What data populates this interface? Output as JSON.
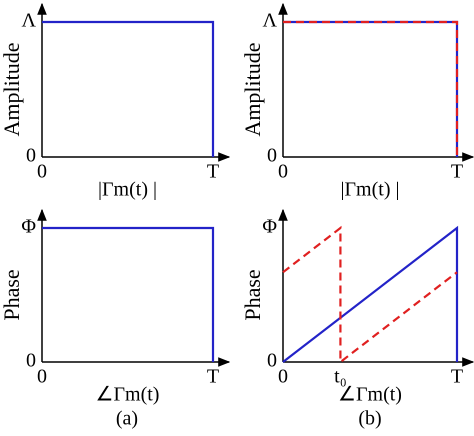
{
  "chart_data": [
    {
      "type": "line",
      "ylabel": "Amplitude",
      "xlabel": "|Γm(t) |",
      "xlim": [
        0,
        1
      ],
      "ylim": [
        0,
        1
      ],
      "xticks": [
        0,
        {
          "value": 1,
          "label": "T"
        }
      ],
      "yticks": [
        0,
        {
          "value": 1,
          "label": "Λ"
        }
      ],
      "series": [
        {
          "color": "#2323c8",
          "linestyle": "solid",
          "x": [
            0,
            1,
            1
          ],
          "values": [
            1,
            1,
            0
          ]
        }
      ]
    },
    {
      "type": "line",
      "ylabel": "Amplitude",
      "xlabel": "|Γm(t) |",
      "xlim": [
        0,
        1
      ],
      "ylim": [
        0,
        1
      ],
      "xticks": [
        0,
        {
          "value": 1,
          "label": "T"
        }
      ],
      "yticks": [
        0,
        {
          "value": 1,
          "label": "Λ"
        }
      ],
      "series": [
        {
          "color": "#2323c8",
          "linestyle": "solid",
          "x": [
            0,
            1,
            1
          ],
          "values": [
            1,
            1,
            0
          ]
        },
        {
          "color": "#e02020",
          "linestyle": "dashed",
          "x": [
            0,
            1,
            1
          ],
          "values": [
            1,
            1,
            0
          ]
        }
      ]
    },
    {
      "type": "line",
      "ylabel": "Phase",
      "xlabel": "∠Γm(t)",
      "xlim": [
        0,
        1
      ],
      "ylim": [
        0,
        1
      ],
      "xticks": [
        0,
        {
          "value": 1,
          "label": "T"
        }
      ],
      "yticks": [
        0,
        {
          "value": 1,
          "label": "Φ"
        }
      ],
      "series": [
        {
          "color": "#2323c8",
          "linestyle": "solid",
          "x": [
            0,
            1,
            1
          ],
          "values": [
            1,
            1,
            0
          ]
        }
      ]
    },
    {
      "type": "line",
      "ylabel": "Phase",
      "xlabel": "∠Γm(t)",
      "xlim": [
        0,
        1
      ],
      "ylim": [
        0,
        1
      ],
      "xticks": [
        0,
        {
          "value": 0.33,
          "label": "t₀"
        },
        {
          "value": 1,
          "label": "T"
        }
      ],
      "yticks": [
        0,
        {
          "value": 1,
          "label": "Φ"
        }
      ],
      "series": [
        {
          "color": "#2323c8",
          "linestyle": "solid",
          "x": [
            0,
            1,
            1
          ],
          "values": [
            0,
            1,
            0
          ]
        },
        {
          "color": "#e02020",
          "linestyle": "dashed",
          "x": [
            0,
            0.33,
            0.33,
            1
          ],
          "values": [
            0.67,
            1,
            0,
            0.67
          ]
        }
      ]
    }
  ],
  "captions": [
    "(a)",
    "(b)"
  ]
}
